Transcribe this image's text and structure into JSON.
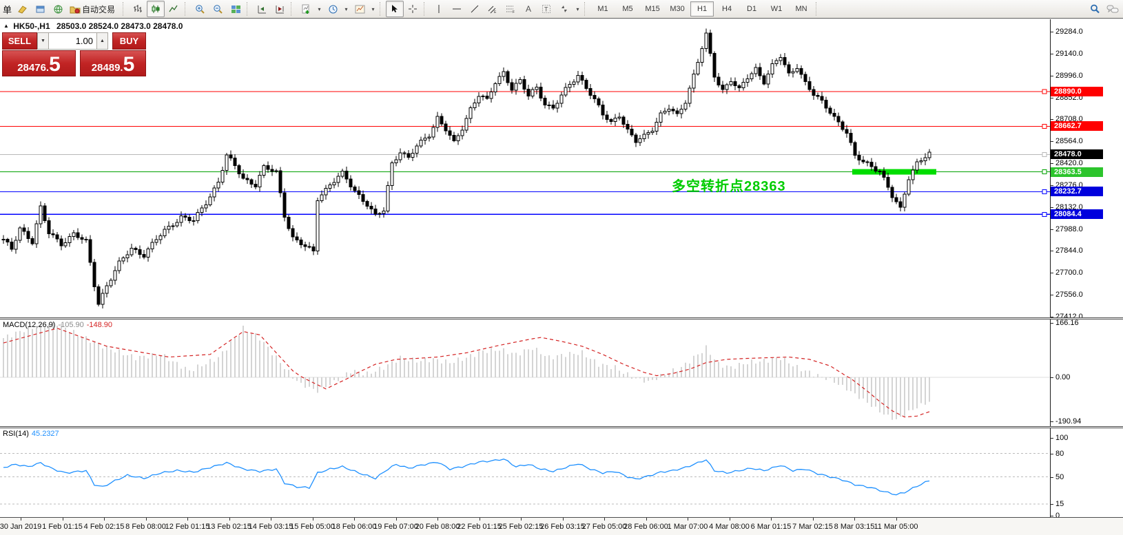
{
  "toolbar": {
    "new_order_label": "单",
    "autotrading_label": "自动交易",
    "timeframes": [
      "M1",
      "M5",
      "M15",
      "M30",
      "H1",
      "H4",
      "D1",
      "W1",
      "MN"
    ],
    "active_timeframe": "H1"
  },
  "chart_header": {
    "collapse_marker": "▲",
    "symbol_period": "HK50-,H1",
    "ohlc": "28503.0 28524.0 28473.0 28478.0"
  },
  "trade_panel": {
    "sell_label": "SELL",
    "buy_label": "BUY",
    "volume": "1.00",
    "sell_price_main": "28476",
    "sell_price_sep": ".",
    "sell_price_pip": "5",
    "buy_price_main": "28489",
    "buy_price_sep": ".",
    "buy_price_pip": "5",
    "button_color": "#c12424"
  },
  "annotation": {
    "text": "多空转折点28363",
    "color": "#00cc00"
  },
  "price_axis": {
    "ticks": [
      "29284.0",
      "29140.0",
      "28996.0",
      "28852.0",
      "28708.0",
      "28564.0",
      "28420.0",
      "28276.0",
      "28132.0",
      "27988.0",
      "27844.0",
      "27700.0",
      "27556.0",
      "27412.0"
    ]
  },
  "levels": [
    {
      "label": "28890.0",
      "value": 28890.0,
      "line_color": "#ff0000",
      "badge_color": "#ff0000",
      "current": false
    },
    {
      "label": "28662.7",
      "value": 28662.7,
      "line_color": "#ff0000",
      "badge_color": "#ff0000",
      "current": false
    },
    {
      "label": "28478.0",
      "value": 28478.0,
      "line_color": "#b8b8b8",
      "badge_color": "#000000",
      "current": true
    },
    {
      "label": "28363.5",
      "value": 28363.5,
      "line_color": "#00a000",
      "badge_color": "#2cc42c",
      "current": false
    },
    {
      "label": "28232.7",
      "value": 28232.7,
      "line_color": "#0000ff",
      "badge_color": "#0000dd",
      "current": false
    },
    {
      "label": "28084.4",
      "value": 28084.4,
      "line_color": "#0000ff",
      "badge_color": "#0000dd",
      "current": false
    }
  ],
  "highlight_zone": {
    "price": 28363.5,
    "bar_start": 206,
    "bar_end": 225,
    "color": "#00dd00",
    "thickness": 8
  },
  "macd_panel": {
    "label": "MACD(12,26,9)",
    "value_main": "-105.90",
    "value_signal": "-148.90",
    "ticks": [
      {
        "label": "166.16",
        "value": 166.16
      },
      {
        "label": "0.00",
        "value": 0
      },
      {
        "label": "-190.94",
        "value": -190.94
      }
    ]
  },
  "rsi_panel": {
    "label": "RSI(14)",
    "value": "45.2327",
    "ticks": [
      {
        "label": "100",
        "value": 100
      },
      {
        "label": "80",
        "value": 80
      },
      {
        "label": "50",
        "value": 50
      },
      {
        "label": "15",
        "value": 15
      },
      {
        "label": "0",
        "value": 0
      }
    ],
    "levels": [
      80,
      50,
      15
    ]
  },
  "time_axis": {
    "labels": [
      "30 Jan 2019",
      "1 Feb 01:15",
      "4 Feb 02:15",
      "8 Feb 08:00",
      "12 Feb 01:15",
      "13 Feb 02:15",
      "14 Feb 03:15",
      "15 Feb 05:00",
      "18 Feb 06:00",
      "19 Feb 07:00",
      "20 Feb 08:00",
      "22 Feb 01:15",
      "25 Feb 02:15",
      "26 Feb 03:15",
      "27 Feb 05:00",
      "28 Feb 06:00",
      "1 Mar 07:00",
      "4 Mar 08:00",
      "6 Mar 01:15",
      "7 Mar 02:15",
      "8 Mar 03:15",
      "11 Mar 05:00"
    ]
  },
  "chart_data": {
    "type": "candlestick",
    "symbol": "HK50-",
    "timeframe": "H1",
    "bars": 225,
    "current_ohlc": {
      "open": 28503.0,
      "high": 28524.0,
      "low": 28473.0,
      "close": 28478.0
    },
    "price_axis_top": 29284.0,
    "price_axis_bottom": 27412.0,
    "colors": {
      "bull": "#ffffff",
      "bear": "#000000",
      "outline": "#000000",
      "macd_hist": "#c6c6c6",
      "macd_signal": "#d42222",
      "macd_main_value": "#8a8a8a",
      "rsi_line": "#1e90ff"
    },
    "close_waypoints": [
      [
        0,
        27920
      ],
      [
        2,
        27850
      ],
      [
        4,
        27990
      ],
      [
        7,
        27910
      ],
      [
        9,
        28130
      ],
      [
        11,
        27960
      ],
      [
        14,
        27890
      ],
      [
        17,
        27960
      ],
      [
        20,
        27900
      ],
      [
        22,
        27620
      ],
      [
        23,
        27500
      ],
      [
        25,
        27620
      ],
      [
        28,
        27760
      ],
      [
        31,
        27860
      ],
      [
        34,
        27820
      ],
      [
        37,
        27920
      ],
      [
        40,
        28000
      ],
      [
        43,
        28070
      ],
      [
        46,
        28040
      ],
      [
        49,
        28160
      ],
      [
        52,
        28300
      ],
      [
        54,
        28470
      ],
      [
        56,
        28400
      ],
      [
        58,
        28320
      ],
      [
        61,
        28280
      ],
      [
        63,
        28390
      ],
      [
        66,
        28360
      ],
      [
        68,
        28080
      ],
      [
        70,
        27930
      ],
      [
        73,
        27870
      ],
      [
        75,
        27840
      ],
      [
        76,
        28190
      ],
      [
        79,
        28280
      ],
      [
        82,
        28350
      ],
      [
        85,
        28240
      ],
      [
        88,
        28150
      ],
      [
        90,
        28070
      ],
      [
        92,
        28110
      ],
      [
        94,
        28420
      ],
      [
        96,
        28500
      ],
      [
        98,
        28450
      ],
      [
        100,
        28530
      ],
      [
        103,
        28610
      ],
      [
        105,
        28720
      ],
      [
        107,
        28640
      ],
      [
        109,
        28550
      ],
      [
        111,
        28650
      ],
      [
        113,
        28780
      ],
      [
        115,
        28870
      ],
      [
        117,
        28830
      ],
      [
        119,
        28950
      ],
      [
        121,
        29020
      ],
      [
        123,
        28910
      ],
      [
        125,
        28960
      ],
      [
        127,
        28860
      ],
      [
        129,
        28920
      ],
      [
        131,
        28810
      ],
      [
        133,
        28780
      ],
      [
        135,
        28860
      ],
      [
        137,
        28940
      ],
      [
        139,
        29000
      ],
      [
        141,
        28920
      ],
      [
        143,
        28830
      ],
      [
        145,
        28740
      ],
      [
        147,
        28690
      ],
      [
        149,
        28740
      ],
      [
        151,
        28630
      ],
      [
        153,
        28560
      ],
      [
        155,
        28600
      ],
      [
        157,
        28650
      ],
      [
        159,
        28740
      ],
      [
        161,
        28780
      ],
      [
        163,
        28730
      ],
      [
        165,
        28830
      ],
      [
        167,
        29000
      ],
      [
        169,
        29180
      ],
      [
        170,
        29260
      ],
      [
        172,
        28990
      ],
      [
        174,
        28900
      ],
      [
        176,
        28970
      ],
      [
        178,
        28900
      ],
      [
        180,
        28980
      ],
      [
        182,
        29040
      ],
      [
        184,
        28960
      ],
      [
        186,
        29060
      ],
      [
        188,
        29120
      ],
      [
        190,
        29000
      ],
      [
        192,
        29060
      ],
      [
        194,
        28950
      ],
      [
        196,
        28870
      ],
      [
        198,
        28820
      ],
      [
        200,
        28760
      ],
      [
        202,
        28690
      ],
      [
        204,
        28620
      ],
      [
        206,
        28460
      ],
      [
        209,
        28420
      ],
      [
        212,
        28370
      ],
      [
        215,
        28200
      ],
      [
        217,
        28120
      ],
      [
        219,
        28330
      ],
      [
        221,
        28420
      ],
      [
        224,
        28478
      ]
    ],
    "macd": {
      "hist_waypoints": [
        [
          0,
          120
        ],
        [
          5,
          145
        ],
        [
          10,
          160
        ],
        [
          13,
          166
        ],
        [
          18,
          130
        ],
        [
          25,
          90
        ],
        [
          32,
          60
        ],
        [
          38,
          70
        ],
        [
          45,
          20
        ],
        [
          52,
          60
        ],
        [
          58,
          150
        ],
        [
          62,
          120
        ],
        [
          68,
          30
        ],
        [
          72,
          -30
        ],
        [
          76,
          -60
        ],
        [
          80,
          -20
        ],
        [
          84,
          20
        ],
        [
          88,
          10
        ],
        [
          92,
          30
        ],
        [
          96,
          60
        ],
        [
          100,
          50
        ],
        [
          104,
          55
        ],
        [
          108,
          45
        ],
        [
          112,
          60
        ],
        [
          116,
          80
        ],
        [
          120,
          85
        ],
        [
          124,
          70
        ],
        [
          128,
          90
        ],
        [
          132,
          60
        ],
        [
          136,
          70
        ],
        [
          140,
          75
        ],
        [
          144,
          40
        ],
        [
          148,
          30
        ],
        [
          152,
          0
        ],
        [
          156,
          -20
        ],
        [
          160,
          10
        ],
        [
          164,
          30
        ],
        [
          168,
          70
        ],
        [
          170,
          90
        ],
        [
          173,
          40
        ],
        [
          176,
          30
        ],
        [
          180,
          45
        ],
        [
          184,
          50
        ],
        [
          188,
          60
        ],
        [
          192,
          30
        ],
        [
          196,
          10
        ],
        [
          200,
          -10
        ],
        [
          204,
          -50
        ],
        [
          209,
          -110
        ],
        [
          213,
          -160
        ],
        [
          216,
          -185
        ],
        [
          219,
          -150
        ],
        [
          222,
          -120
        ],
        [
          224,
          -106
        ]
      ],
      "signal_waypoints": [
        [
          0,
          105
        ],
        [
          13,
          150
        ],
        [
          25,
          95
        ],
        [
          40,
          62
        ],
        [
          50,
          70
        ],
        [
          58,
          140
        ],
        [
          62,
          130
        ],
        [
          70,
          20
        ],
        [
          78,
          -50
        ],
        [
          85,
          10
        ],
        [
          90,
          40
        ],
        [
          95,
          55
        ],
        [
          100,
          58
        ],
        [
          105,
          62
        ],
        [
          112,
          75
        ],
        [
          120,
          98
        ],
        [
          128,
          118
        ],
        [
          130,
          122
        ],
        [
          135,
          110
        ],
        [
          140,
          95
        ],
        [
          145,
          70
        ],
        [
          150,
          40
        ],
        [
          155,
          15
        ],
        [
          158,
          5
        ],
        [
          162,
          12
        ],
        [
          166,
          25
        ],
        [
          170,
          45
        ],
        [
          175,
          55
        ],
        [
          180,
          58
        ],
        [
          185,
          60
        ],
        [
          190,
          62
        ],
        [
          195,
          55
        ],
        [
          200,
          35
        ],
        [
          205,
          -5
        ],
        [
          209,
          -60
        ],
        [
          212,
          -105
        ],
        [
          215,
          -145
        ],
        [
          218,
          -172
        ],
        [
          221,
          -168
        ],
        [
          224,
          -148.9
        ]
      ]
    },
    "rsi": {
      "waypoints": [
        [
          0,
          62
        ],
        [
          3,
          66
        ],
        [
          6,
          63
        ],
        [
          9,
          68
        ],
        [
          12,
          60
        ],
        [
          15,
          55
        ],
        [
          20,
          58
        ],
        [
          22,
          40
        ],
        [
          24,
          37
        ],
        [
          27,
          45
        ],
        [
          30,
          52
        ],
        [
          34,
          48
        ],
        [
          38,
          55
        ],
        [
          42,
          58
        ],
        [
          46,
          56
        ],
        [
          50,
          62
        ],
        [
          54,
          68
        ],
        [
          58,
          60
        ],
        [
          62,
          57
        ],
        [
          66,
          60
        ],
        [
          68,
          42
        ],
        [
          71,
          37
        ],
        [
          74,
          36
        ],
        [
          76,
          55
        ],
        [
          79,
          60
        ],
        [
          82,
          63
        ],
        [
          86,
          55
        ],
        [
          90,
          48
        ],
        [
          93,
          60
        ],
        [
          95,
          66
        ],
        [
          98,
          61
        ],
        [
          101,
          65
        ],
        [
          105,
          69
        ],
        [
          108,
          60
        ],
        [
          111,
          63
        ],
        [
          115,
          69
        ],
        [
          119,
          71
        ],
        [
          121,
          73
        ],
        [
          124,
          63
        ],
        [
          127,
          66
        ],
        [
          130,
          60
        ],
        [
          133,
          57
        ],
        [
          136,
          62
        ],
        [
          139,
          67
        ],
        [
          142,
          60
        ],
        [
          145,
          55
        ],
        [
          148,
          57
        ],
        [
          151,
          50
        ],
        [
          153,
          47
        ],
        [
          156,
          51
        ],
        [
          159,
          56
        ],
        [
          162,
          58
        ],
        [
          165,
          62
        ],
        [
          168,
          68
        ],
        [
          170,
          72
        ],
        [
          172,
          58
        ],
        [
          175,
          55
        ],
        [
          178,
          58
        ],
        [
          181,
          61
        ],
        [
          184,
          58
        ],
        [
          187,
          63
        ],
        [
          188,
          65
        ],
        [
          191,
          58
        ],
        [
          194,
          60
        ],
        [
          197,
          54
        ],
        [
          200,
          50
        ],
        [
          203,
          46
        ],
        [
          206,
          40
        ],
        [
          210,
          36
        ],
        [
          213,
          31
        ],
        [
          216,
          27
        ],
        [
          218,
          30
        ],
        [
          221,
          38
        ],
        [
          224,
          45.2
        ]
      ]
    }
  }
}
